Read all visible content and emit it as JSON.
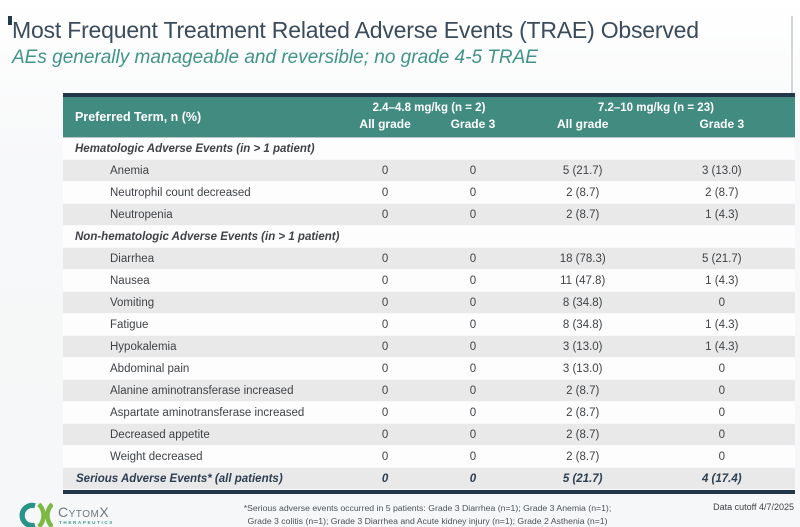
{
  "slide": {
    "title": "Most Frequent Treatment Related Adverse Events (TRAE) Observed",
    "subtitle": "AEs generally manageable and reversible; no grade 4-5 TRAE"
  },
  "table": {
    "corner_header": "Preferred Term, n (%)",
    "group_headers": [
      {
        "label": "2.4–4.8 mg/kg (n = 2)"
      },
      {
        "label": "7.2–10 mg/kg (n = 23)"
      }
    ],
    "sub_headers": [
      "All grade",
      "Grade 3",
      "All grade",
      "Grade 3"
    ],
    "rows": [
      {
        "type": "section",
        "label": "Hematologic Adverse Events (in > 1 patient)"
      },
      {
        "type": "data",
        "label": "Anemia",
        "values": [
          "0",
          "0",
          "5 (21.7)",
          "3 (13.0)"
        ]
      },
      {
        "type": "data",
        "label": "Neutrophil count decreased",
        "values": [
          "0",
          "0",
          "2 (8.7)",
          "2 (8.7)"
        ]
      },
      {
        "type": "data",
        "label": "Neutropenia",
        "values": [
          "0",
          "0",
          "2 (8.7)",
          "1 (4.3)"
        ]
      },
      {
        "type": "section",
        "label": "Non-hematologic Adverse Events (in > 1 patient)"
      },
      {
        "type": "data",
        "label": "Diarrhea",
        "values": [
          "0",
          "0",
          "18 (78.3)",
          "5 (21.7)"
        ]
      },
      {
        "type": "data",
        "label": "Nausea",
        "values": [
          "0",
          "0",
          "11 (47.8)",
          "1 (4.3)"
        ]
      },
      {
        "type": "data",
        "label": "Vomiting",
        "values": [
          "0",
          "0",
          "8 (34.8)",
          "0"
        ]
      },
      {
        "type": "data",
        "label": "Fatigue",
        "values": [
          "0",
          "0",
          "8 (34.8)",
          "1 (4.3)"
        ]
      },
      {
        "type": "data",
        "label": "Hypokalemia",
        "values": [
          "0",
          "0",
          "3 (13.0)",
          "1 (4.3)"
        ]
      },
      {
        "type": "data",
        "label": "Abdominal pain",
        "values": [
          "0",
          "0",
          "3 (13.0)",
          "0"
        ]
      },
      {
        "type": "data",
        "label": "Alanine aminotransferase increased",
        "values": [
          "0",
          "0",
          "2 (8.7)",
          "0"
        ]
      },
      {
        "type": "data",
        "label": "Aspartate aminotransferase increased",
        "values": [
          "0",
          "0",
          "2 (8.7)",
          "0"
        ]
      },
      {
        "type": "data",
        "label": "Decreased appetite",
        "values": [
          "0",
          "0",
          "2 (8.7)",
          "0"
        ]
      },
      {
        "type": "data",
        "label": "Weight decreased",
        "values": [
          "0",
          "0",
          "2 (8.7)",
          "0"
        ]
      },
      {
        "type": "total",
        "label": "Serious Adverse Events* (all patients)",
        "values": [
          "0",
          "0",
          "5 (21.7)",
          "4 (17.4)"
        ]
      }
    ]
  },
  "footer": {
    "footnote_line1": "*Serious adverse events occurred in 5 patients: Grade 3 Diarrhea (n=1); Grade 3 Anemia (n=1);",
    "footnote_line2": "Grade 3 colitis (n=1); Grade 3 Diarrhea and Acute kidney injury (n=1); Grade 2 Asthenia (n=1)",
    "data_cutoff": "Data cutoff 4/7/2025",
    "logo": {
      "wordmark": "CytomX",
      "subtext": "THERAPEUTICS"
    }
  },
  "colors": {
    "header_teal": "#418b80",
    "navy_border": "#22384a",
    "subtitle_teal": "#41948a",
    "title_slate": "#3a4b5c",
    "row_shade": "#e9e9e9",
    "logo_teal": "#2a9388",
    "logo_green": "#7cb944"
  }
}
